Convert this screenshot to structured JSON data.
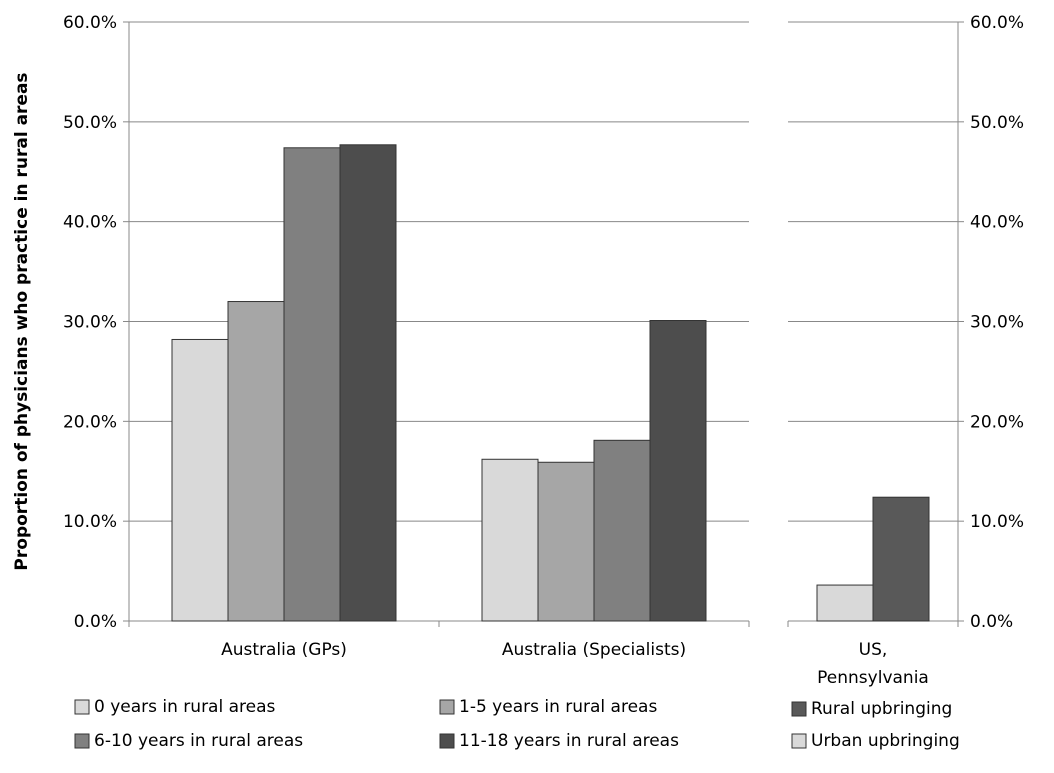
{
  "chart_data": [
    {
      "type": "bar",
      "ylabel": "Proportion of physicians who practice in rural areas",
      "ylim": [
        0,
        60
      ],
      "yticks": [
        "0.0%",
        "10.0%",
        "20.0%",
        "30.0%",
        "40.0%",
        "50.0%",
        "60.0%"
      ],
      "grid": "horizontal",
      "categories": [
        "Australia (GPs)",
        "Australia (Specialists)"
      ],
      "series": [
        {
          "name": "0 years in rural areas",
          "color": "#d9d9d9",
          "values": [
            28.2,
            16.2
          ]
        },
        {
          "name": "1-5 years in rural areas",
          "color": "#a6a6a6",
          "values": [
            32.0,
            15.9
          ]
        },
        {
          "name": "6-10 years in rural areas",
          "color": "#808080",
          "values": [
            47.4,
            18.1
          ]
        },
        {
          "name": "11-18 years in rural areas",
          "color": "#4d4d4d",
          "values": [
            47.7,
            30.1
          ]
        }
      ]
    },
    {
      "type": "bar",
      "ylim": [
        0,
        60
      ],
      "yticks": [
        "0.0%",
        "10.0%",
        "20.0%",
        "30.0%",
        "40.0%",
        "50.0%",
        "60.0%"
      ],
      "grid": "horizontal",
      "categories": [
        "US,\nPennsylvania"
      ],
      "category_lines": [
        "US,",
        "Pennsylvania"
      ],
      "series": [
        {
          "name": "Urban upbringing",
          "color": "#d9d9d9",
          "values": [
            3.6
          ]
        },
        {
          "name": "Rural upbringing",
          "color": "#595959",
          "values": [
            12.4
          ]
        }
      ],
      "legend_order": [
        "Rural upbringing",
        "Urban upbringing"
      ]
    }
  ]
}
